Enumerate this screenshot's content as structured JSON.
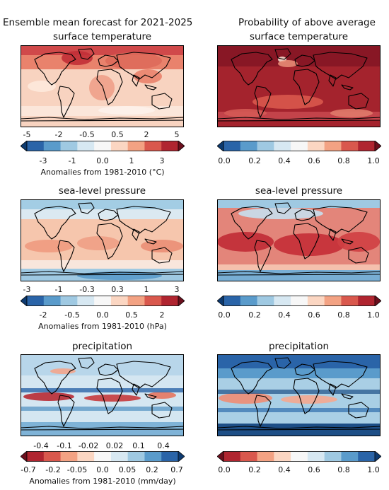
{
  "header": {
    "left_title": "Ensemble mean forecast for 2021-2025",
    "right_title": "Probability of above average"
  },
  "rows": [
    {
      "variable": "surface temperature",
      "left_map": {
        "colorbar": {
          "top_ticks": [
            "-5",
            "-2",
            "-0.5",
            "0.5",
            "2",
            "5"
          ],
          "bottom_ticks": [
            "-3",
            "-1",
            "0.0",
            "1",
            "3"
          ],
          "label": "Anomalies from 1981-2010 (°C)",
          "palette": "diverging-blue-red",
          "extend": "both"
        }
      },
      "right_map": {
        "colorbar": {
          "bottom_ticks": [
            "0.0",
            "0.2",
            "0.4",
            "0.6",
            "0.8",
            "1.0"
          ],
          "palette": "diverging-blue-red",
          "extend": "both"
        }
      }
    },
    {
      "variable": "sea-level pressure",
      "left_map": {
        "colorbar": {
          "top_ticks": [
            "-3",
            "-1",
            "-0.3",
            "0.3",
            "1",
            "3"
          ],
          "bottom_ticks": [
            "-2",
            "-0.5",
            "0.0",
            "0.5",
            "2"
          ],
          "label": "Anomalies from 1981-2010 (hPa)",
          "palette": "diverging-blue-red",
          "extend": "both"
        }
      },
      "right_map": {
        "colorbar": {
          "bottom_ticks": [
            "0.0",
            "0.2",
            "0.4",
            "0.6",
            "0.8",
            "1.0"
          ],
          "palette": "diverging-blue-red",
          "extend": "both"
        }
      }
    },
    {
      "variable": "precipitation",
      "left_map": {
        "colorbar": {
          "top_ticks": [
            "-0.4",
            "-0.1",
            "-0.02",
            "0.02",
            "0.1",
            "0.4"
          ],
          "bottom_ticks": [
            "-0.7",
            "-0.2",
            "-0.05",
            "0.0",
            "0.05",
            "0.2",
            "0.7"
          ],
          "label": "Anomalies from 1981-2010 (mm/day)",
          "palette": "diverging-red-blue",
          "extend": "both"
        }
      },
      "right_map": {
        "colorbar": {
          "bottom_ticks": [
            "0.0",
            "0.2",
            "0.4",
            "0.6",
            "0.8",
            "1.0"
          ],
          "palette": "diverging-red-blue",
          "extend": "both"
        }
      }
    }
  ],
  "colors": {
    "dark_red": "#8f1b23",
    "red": "#c8444a",
    "light_red": "#ef9f86",
    "pale_red": "#fbdfd2",
    "pale_blue": "#d9e9f2",
    "light_blue": "#98c4df",
    "blue": "#4f8fc0",
    "dark_blue": "#1d4e86",
    "coastline": "#000000"
  }
}
